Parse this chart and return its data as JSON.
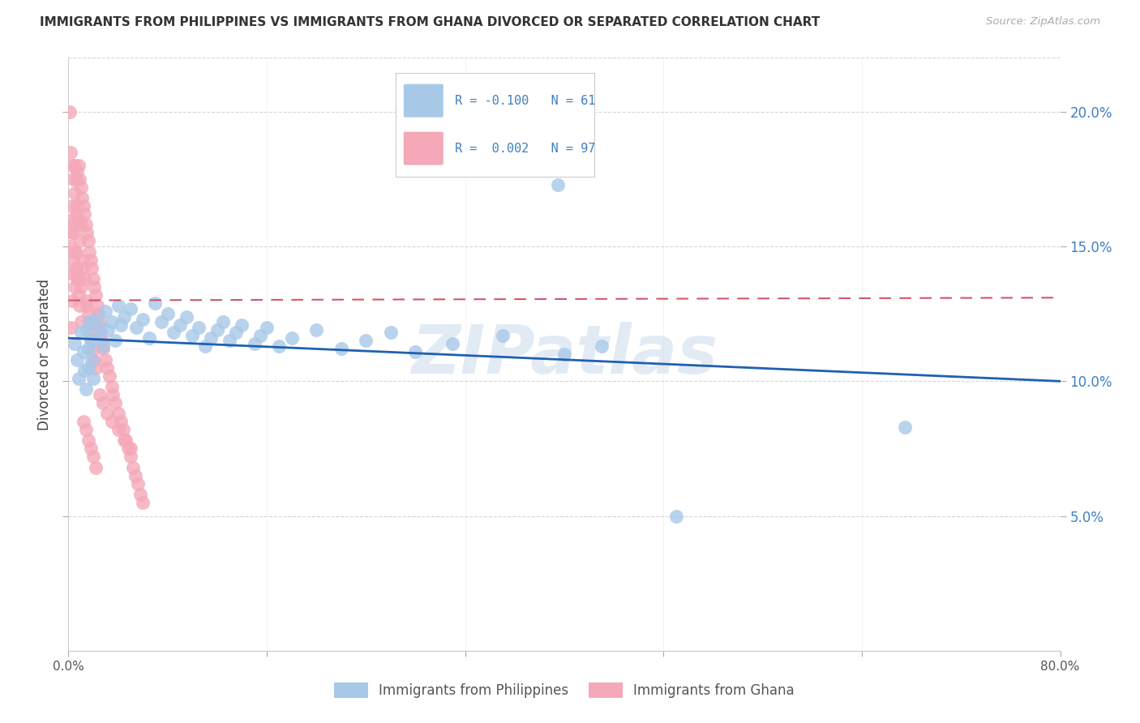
{
  "title": "IMMIGRANTS FROM PHILIPPINES VS IMMIGRANTS FROM GHANA DIVORCED OR SEPARATED CORRELATION CHART",
  "source": "Source: ZipAtlas.com",
  "ylabel": "Divorced or Separated",
  "legend_blue_label": "Immigrants from Philippines",
  "legend_pink_label": "Immigrants from Ghana",
  "legend_blue_R": "-0.100",
  "legend_blue_N": "61",
  "legend_pink_R": "0.002",
  "legend_pink_N": "97",
  "blue_color": "#a8c8e8",
  "pink_color": "#f4a8b8",
  "blue_line_color": "#2060b0",
  "pink_line_color": "#d05868",
  "watermark": "ZIPatlas",
  "background_color": "#ffffff",
  "xlim": [
    0.0,
    0.8
  ],
  "ylim": [
    0.0,
    0.22
  ],
  "xticks": [
    0.0,
    0.16,
    0.32,
    0.48,
    0.64,
    0.8
  ],
  "yticks": [
    0.05,
    0.1,
    0.15,
    0.2
  ],
  "blue_line_x": [
    0.0,
    0.8
  ],
  "blue_line_y": [
    0.116,
    0.1
  ],
  "pink_line_x": [
    0.0,
    0.8
  ],
  "pink_line_y": [
    0.13,
    0.131
  ],
  "blue_x": [
    0.005,
    0.007,
    0.008,
    0.01,
    0.012,
    0.013,
    0.014,
    0.015,
    0.016,
    0.016,
    0.017,
    0.018,
    0.019,
    0.02,
    0.022,
    0.024,
    0.025,
    0.028,
    0.03,
    0.032,
    0.035,
    0.038,
    0.04,
    0.042,
    0.045,
    0.05,
    0.055,
    0.06,
    0.065,
    0.07,
    0.075,
    0.08,
    0.085,
    0.09,
    0.095,
    0.1,
    0.105,
    0.11,
    0.115,
    0.12,
    0.125,
    0.13,
    0.135,
    0.14,
    0.15,
    0.155,
    0.16,
    0.17,
    0.18,
    0.2,
    0.22,
    0.24,
    0.26,
    0.28,
    0.31,
    0.35,
    0.4,
    0.43,
    0.49,
    0.675,
    0.395
  ],
  "blue_y": [
    0.114,
    0.108,
    0.101,
    0.118,
    0.111,
    0.104,
    0.097,
    0.119,
    0.112,
    0.105,
    0.122,
    0.115,
    0.108,
    0.101,
    0.123,
    0.116,
    0.12,
    0.113,
    0.126,
    0.119,
    0.122,
    0.115,
    0.128,
    0.121,
    0.124,
    0.127,
    0.12,
    0.123,
    0.116,
    0.129,
    0.122,
    0.125,
    0.118,
    0.121,
    0.124,
    0.117,
    0.12,
    0.113,
    0.116,
    0.119,
    0.122,
    0.115,
    0.118,
    0.121,
    0.114,
    0.117,
    0.12,
    0.113,
    0.116,
    0.119,
    0.112,
    0.115,
    0.118,
    0.111,
    0.114,
    0.117,
    0.11,
    0.113,
    0.05,
    0.083,
    0.173
  ],
  "pink_x": [
    0.001,
    0.001,
    0.002,
    0.002,
    0.002,
    0.003,
    0.003,
    0.003,
    0.003,
    0.004,
    0.004,
    0.004,
    0.005,
    0.005,
    0.005,
    0.005,
    0.006,
    0.006,
    0.006,
    0.007,
    0.007,
    0.007,
    0.008,
    0.008,
    0.008,
    0.009,
    0.009,
    0.01,
    0.01,
    0.01,
    0.011,
    0.011,
    0.012,
    0.012,
    0.013,
    0.013,
    0.014,
    0.014,
    0.015,
    0.015,
    0.016,
    0.016,
    0.017,
    0.017,
    0.018,
    0.018,
    0.019,
    0.019,
    0.02,
    0.02,
    0.021,
    0.021,
    0.022,
    0.022,
    0.023,
    0.024,
    0.025,
    0.026,
    0.027,
    0.028,
    0.03,
    0.031,
    0.033,
    0.035,
    0.036,
    0.038,
    0.04,
    0.042,
    0.044,
    0.046,
    0.048,
    0.05,
    0.052,
    0.054,
    0.056,
    0.058,
    0.06,
    0.004,
    0.005,
    0.006,
    0.007,
    0.008,
    0.009,
    0.01,
    0.012,
    0.014,
    0.016,
    0.018,
    0.02,
    0.022,
    0.025,
    0.028,
    0.031,
    0.035,
    0.04,
    0.045,
    0.05
  ],
  "pink_y": [
    0.2,
    0.14,
    0.185,
    0.15,
    0.12,
    0.18,
    0.165,
    0.155,
    0.13,
    0.175,
    0.16,
    0.145,
    0.18,
    0.17,
    0.158,
    0.135,
    0.175,
    0.162,
    0.148,
    0.178,
    0.165,
    0.14,
    0.18,
    0.16,
    0.138,
    0.175,
    0.152,
    0.172,
    0.158,
    0.135,
    0.168,
    0.145,
    0.165,
    0.142,
    0.162,
    0.138,
    0.158,
    0.13,
    0.155,
    0.128,
    0.152,
    0.125,
    0.148,
    0.122,
    0.145,
    0.118,
    0.142,
    0.115,
    0.138,
    0.112,
    0.135,
    0.108,
    0.132,
    0.105,
    0.128,
    0.125,
    0.122,
    0.118,
    0.115,
    0.112,
    0.108,
    0.105,
    0.102,
    0.098,
    0.095,
    0.092,
    0.088,
    0.085,
    0.082,
    0.078,
    0.075,
    0.072,
    0.068,
    0.065,
    0.062,
    0.058,
    0.055,
    0.155,
    0.148,
    0.142,
    0.138,
    0.132,
    0.128,
    0.122,
    0.085,
    0.082,
    0.078,
    0.075,
    0.072,
    0.068,
    0.095,
    0.092,
    0.088,
    0.085,
    0.082,
    0.078,
    0.075
  ]
}
